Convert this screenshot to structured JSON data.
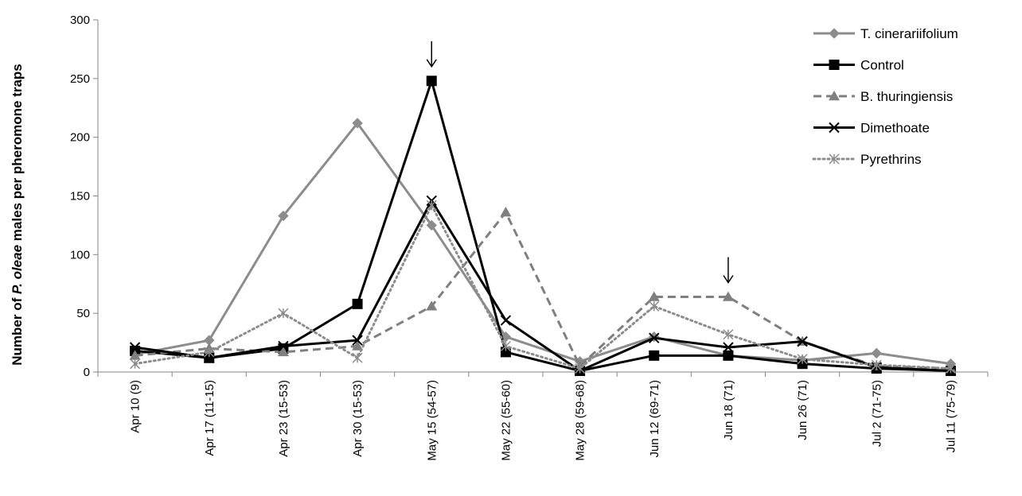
{
  "chart_data": {
    "type": "line",
    "title": "",
    "ylabel_parts": [
      {
        "text": "Number of ",
        "italic": false
      },
      {
        "text": "P. oleae",
        "italic": true
      },
      {
        "text": " males per pheromone traps",
        "italic": false
      }
    ],
    "xlabel": "",
    "ylim": [
      0,
      300
    ],
    "yticks": [
      0,
      50,
      100,
      150,
      200,
      250,
      300
    ],
    "grid": false,
    "legend_position": "top-right",
    "categories": [
      "Apr 10 (9)",
      "Apr 17 (11-15)",
      "Apr 23 (15-53)",
      "Apr 30 (15-53)",
      "May 15 (54-57)",
      "May 22 (55-60)",
      "May 28 (59-68)",
      "Jun 12 (69-71)",
      "Jun 18 (71)",
      "Jun 26 (71)",
      "Jul 2 (71-75)",
      "Jul 11 (75-79)"
    ],
    "series": [
      {
        "name": "T. cinerariifolium",
        "color": "#8c8c8c",
        "dash": "solid",
        "marker": "diamond",
        "values": [
          15,
          27,
          133,
          212,
          125,
          30,
          9,
          30,
          14,
          10,
          16,
          7
        ]
      },
      {
        "name": "Control",
        "color": "#000000",
        "dash": "solid",
        "marker": "square",
        "values": [
          18,
          12,
          20,
          58,
          248,
          17,
          1,
          14,
          14,
          7,
          3,
          1
        ]
      },
      {
        "name": "B. thuringiensis",
        "color": "#7f7f7f",
        "dash": "dash",
        "marker": "triangle",
        "values": [
          14,
          20,
          17,
          22,
          56,
          136,
          5,
          64,
          64,
          26,
          5,
          3
        ]
      },
      {
        "name": "Dimethoate",
        "color": "#000000",
        "dash": "solid",
        "marker": "x",
        "values": [
          21,
          12,
          22,
          27,
          146,
          44,
          1,
          29,
          21,
          26,
          4,
          1
        ]
      },
      {
        "name": "Pyrethrins",
        "color": "#8c8c8c",
        "dash": "dot",
        "marker": "star",
        "values": [
          7,
          17,
          50,
          12,
          142,
          22,
          3,
          56,
          32,
          11,
          6,
          3
        ]
      }
    ],
    "annotations": [
      {
        "type": "arrow",
        "category_index": 4,
        "value": 248,
        "symbol": "↓"
      },
      {
        "type": "arrow",
        "category_index": 8,
        "value": 64,
        "symbol": "↓"
      }
    ]
  }
}
